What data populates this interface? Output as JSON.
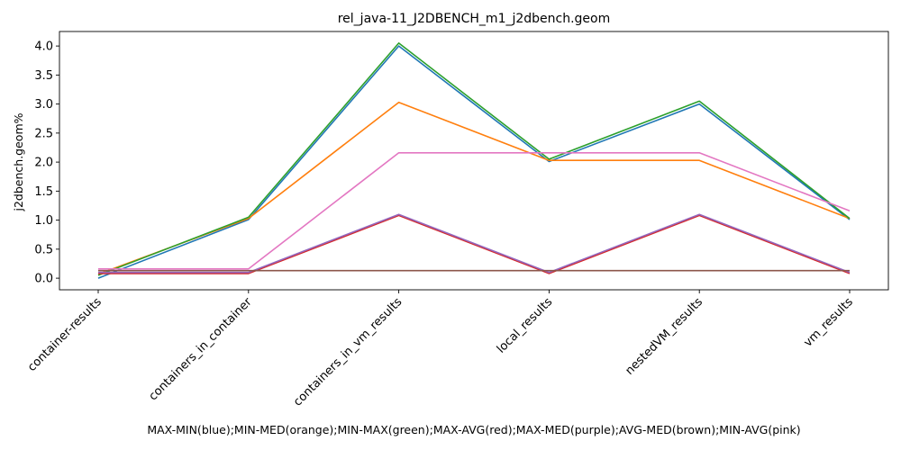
{
  "chart_data": {
    "type": "line",
    "title": "rel_java-11_J2DBENCH_m1_j2dbench.geom",
    "xlabel": "MAX-MIN(blue);MIN-MED(orange);MIN-MAX(green);MAX-AVG(red);MAX-MED(purple);AVG-MED(brown);MIN-AVG(pink)",
    "ylabel": "j2dbench.geom%",
    "categories": [
      "container-results",
      "containers_in_container",
      "containers_in_vm_results",
      "local_results",
      "nestedVM_results",
      "vm_results"
    ],
    "ylim": [
      -0.2,
      4.25
    ],
    "yticks": [
      0.0,
      0.5,
      1.0,
      1.5,
      2.0,
      2.5,
      3.0,
      3.5,
      4.0
    ],
    "ytick_labels": [
      "0.0",
      "0.5",
      "1.0",
      "1.5",
      "2.0",
      "2.5",
      "3.0",
      "3.5",
      "4.0"
    ],
    "grid": false,
    "series": [
      {
        "name": "MAX-MIN",
        "color": "#1f77b4",
        "values": [
          0.0,
          1.01,
          4.0,
          2.01,
          3.0,
          1.01
        ]
      },
      {
        "name": "MIN-MED",
        "color": "#ff7f0e",
        "values": [
          0.07,
          1.03,
          3.03,
          2.03,
          2.03,
          1.03
        ]
      },
      {
        "name": "MIN-MAX",
        "color": "#2ca02c",
        "values": [
          0.05,
          1.05,
          4.05,
          2.05,
          3.05,
          1.03
        ]
      },
      {
        "name": "MAX-AVG",
        "color": "#d62728",
        "values": [
          0.08,
          0.08,
          1.08,
          0.08,
          1.08,
          0.08
        ]
      },
      {
        "name": "MAX-MED",
        "color": "#9467bd",
        "values": [
          0.1,
          0.1,
          1.1,
          0.1,
          1.1,
          0.1
        ]
      },
      {
        "name": "AVG-MED",
        "color": "#8c564b",
        "values": [
          0.13,
          0.13,
          0.13,
          0.13,
          0.13,
          0.13
        ]
      },
      {
        "name": "MIN-AVG",
        "color": "#e377c2",
        "values": [
          0.16,
          0.16,
          2.16,
          2.16,
          2.16,
          1.16
        ]
      }
    ]
  }
}
